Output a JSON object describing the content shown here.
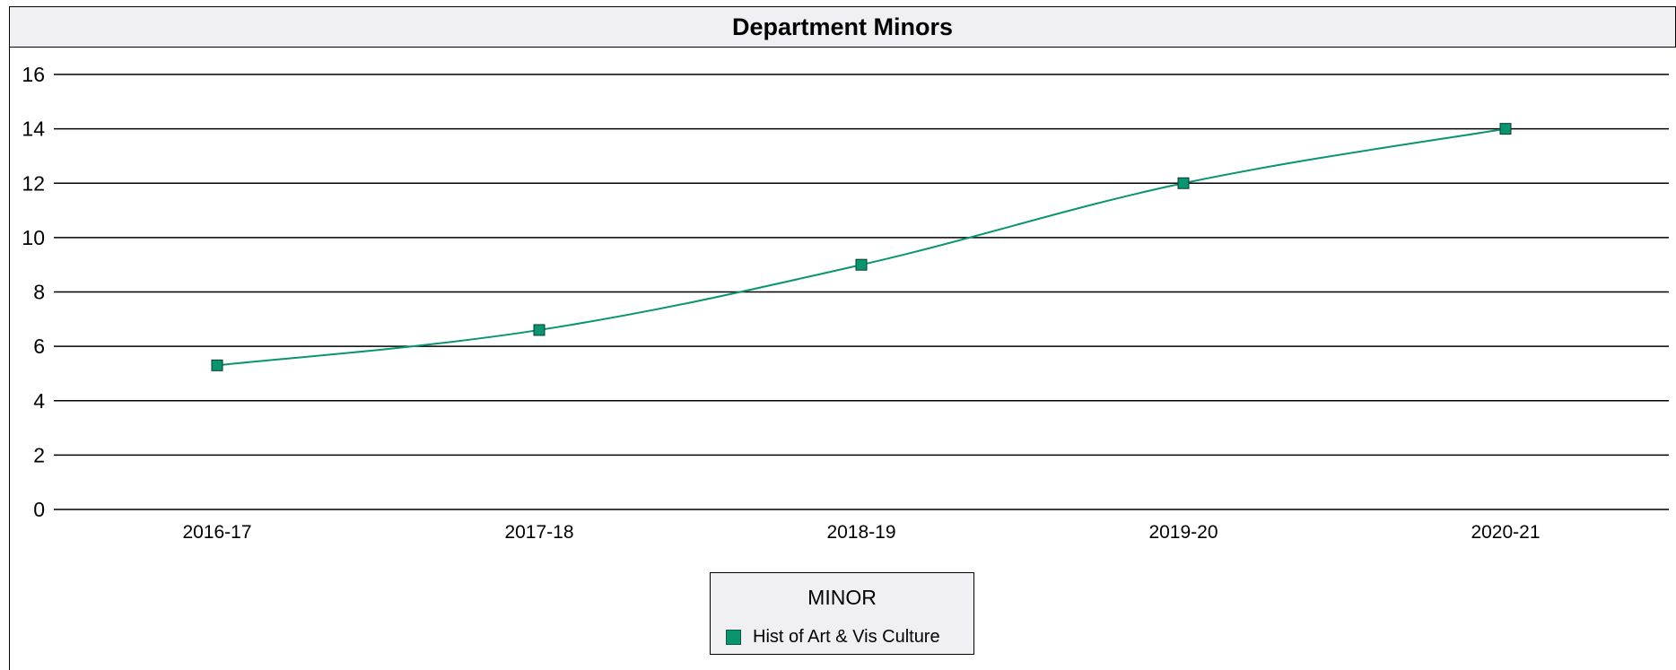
{
  "chart_data": {
    "type": "line",
    "title": "Department Minors",
    "categories": [
      "2016-17",
      "2017-18",
      "2018-19",
      "2019-20",
      "2020-21"
    ],
    "series": [
      {
        "name": "Hist of Art & Vis Culture",
        "values": [
          5.3,
          6.6,
          9,
          12,
          14
        ],
        "color": "#0a9470"
      }
    ],
    "ylim": [
      0,
      16
    ],
    "yticks": [
      0,
      2,
      4,
      6,
      8,
      10,
      12,
      14,
      16
    ],
    "xlabel": "",
    "ylabel": "",
    "grid": true,
    "marker": "square",
    "legend": {
      "title": "MINOR",
      "position": "bottom-center"
    }
  }
}
